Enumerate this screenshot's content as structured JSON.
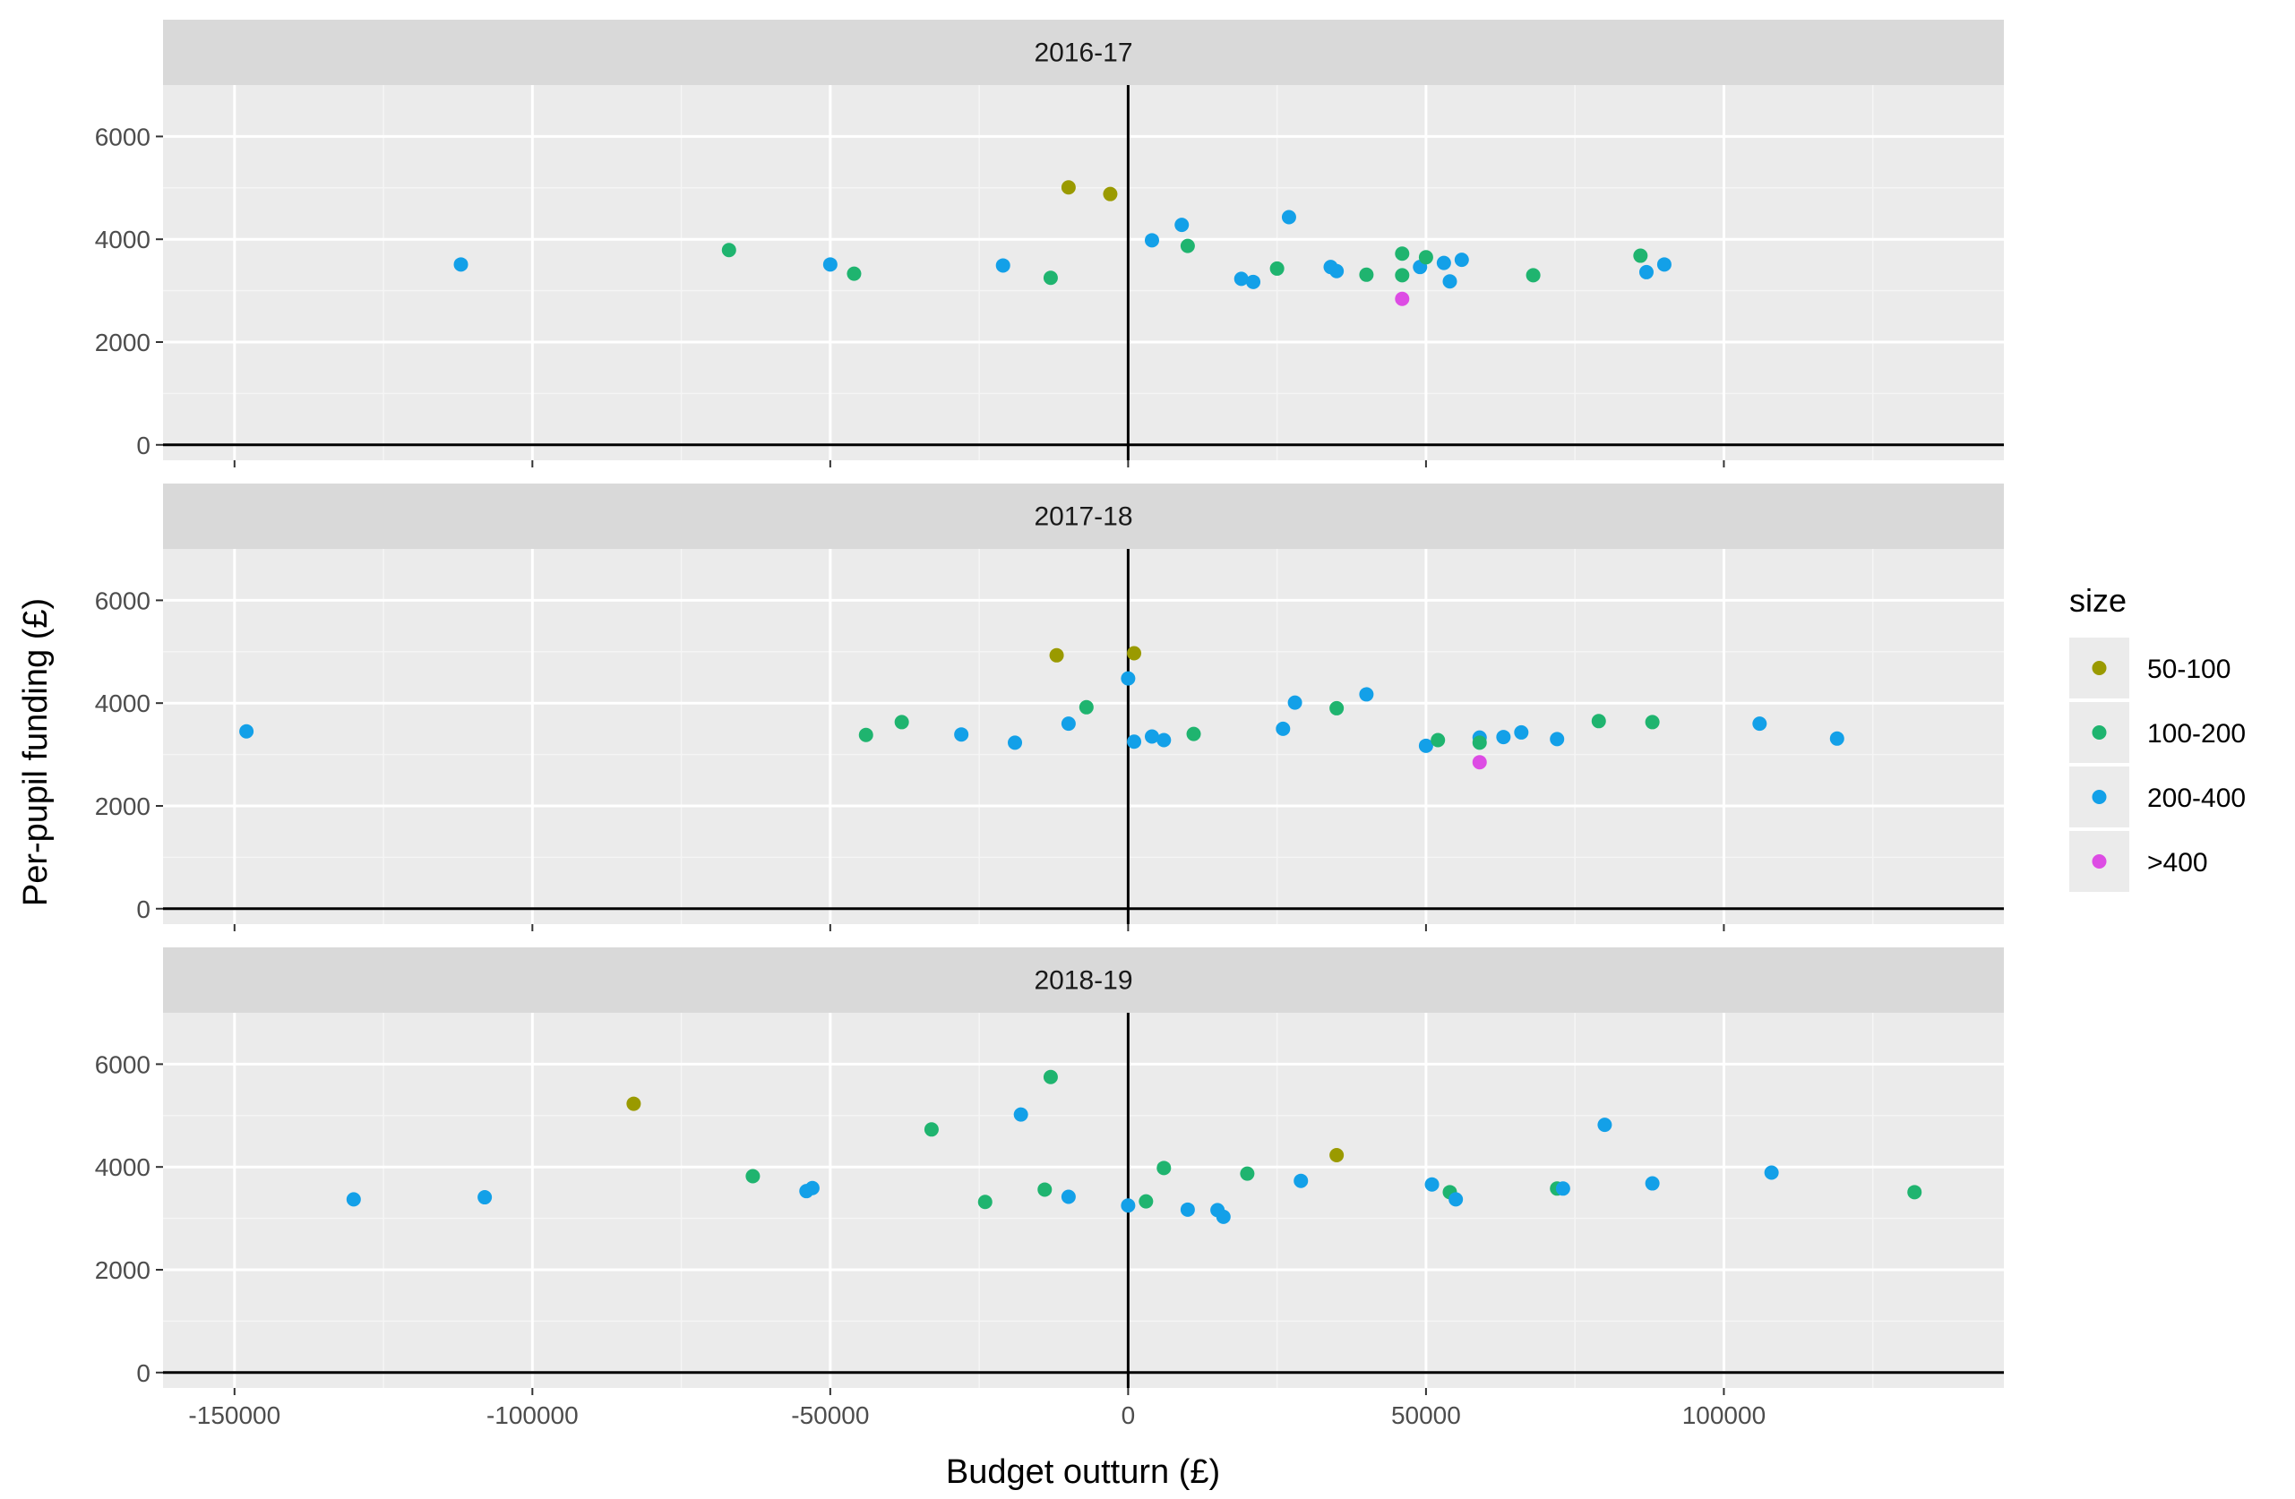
{
  "chart_data": {
    "type": "scatter",
    "xlabel": "Budget outturn (£)",
    "ylabel": "Per-pupil funding (£)",
    "xlim": [
      -162000,
      147000
    ],
    "ylim": [
      -300,
      7000
    ],
    "x_ticks": [
      -150000,
      -100000,
      -50000,
      0,
      50000,
      100000
    ],
    "y_ticks": [
      0,
      2000,
      4000,
      6000
    ],
    "x_tick_labels": [
      "-150000",
      "-100000",
      "-50000",
      "0",
      "50000",
      "100000"
    ],
    "y_tick_labels": [
      "0",
      "2000",
      "4000",
      "6000"
    ],
    "legend": {
      "title": "size",
      "placement": "right",
      "entries": [
        {
          "label": "50-100",
          "color": "#9a9a00"
        },
        {
          "label": "100-200",
          "color": "#1fb46f"
        },
        {
          "label": "200-400",
          "color": "#13a0e8"
        },
        {
          "label": ">400",
          "color": "#dd4ce4"
        }
      ]
    },
    "panels": [
      {
        "label": "2016-17",
        "points": [
          {
            "x": -112000,
            "y": 3510,
            "s": 2
          },
          {
            "x": -67000,
            "y": 3790,
            "s": 1
          },
          {
            "x": -50000,
            "y": 3510,
            "s": 2
          },
          {
            "x": -46000,
            "y": 3330,
            "s": 1
          },
          {
            "x": -21000,
            "y": 3490,
            "s": 2
          },
          {
            "x": -13000,
            "y": 3250,
            "s": 1
          },
          {
            "x": -10000,
            "y": 5010,
            "s": 0
          },
          {
            "x": -3000,
            "y": 4880,
            "s": 0
          },
          {
            "x": 4000,
            "y": 3980,
            "s": 2
          },
          {
            "x": 9000,
            "y": 4280,
            "s": 2
          },
          {
            "x": 10000,
            "y": 3870,
            "s": 1
          },
          {
            "x": 19000,
            "y": 3230,
            "s": 2
          },
          {
            "x": 21000,
            "y": 3170,
            "s": 2
          },
          {
            "x": 25000,
            "y": 3430,
            "s": 1
          },
          {
            "x": 27000,
            "y": 4430,
            "s": 2
          },
          {
            "x": 34000,
            "y": 3460,
            "s": 2
          },
          {
            "x": 35000,
            "y": 3380,
            "s": 2
          },
          {
            "x": 40000,
            "y": 3310,
            "s": 1
          },
          {
            "x": 46000,
            "y": 3720,
            "s": 1
          },
          {
            "x": 46000,
            "y": 3300,
            "s": 1
          },
          {
            "x": 46000,
            "y": 2840,
            "s": 3
          },
          {
            "x": 49000,
            "y": 3460,
            "s": 2
          },
          {
            "x": 50000,
            "y": 3650,
            "s": 1
          },
          {
            "x": 53000,
            "y": 3540,
            "s": 2
          },
          {
            "x": 54000,
            "y": 3180,
            "s": 2
          },
          {
            "x": 56000,
            "y": 3600,
            "s": 2
          },
          {
            "x": 68000,
            "y": 3300,
            "s": 1
          },
          {
            "x": 86000,
            "y": 3680,
            "s": 1
          },
          {
            "x": 87000,
            "y": 3360,
            "s": 2
          },
          {
            "x": 90000,
            "y": 3510,
            "s": 2
          }
        ]
      },
      {
        "label": "2017-18",
        "points": [
          {
            "x": -148000,
            "y": 3450,
            "s": 2
          },
          {
            "x": -44000,
            "y": 3380,
            "s": 1
          },
          {
            "x": -38000,
            "y": 3630,
            "s": 1
          },
          {
            "x": -28000,
            "y": 3390,
            "s": 2
          },
          {
            "x": -19000,
            "y": 3230,
            "s": 2
          },
          {
            "x": -12000,
            "y": 4930,
            "s": 0
          },
          {
            "x": -10000,
            "y": 3600,
            "s": 2
          },
          {
            "x": -7000,
            "y": 3920,
            "s": 1
          },
          {
            "x": 0,
            "y": 4480,
            "s": 2
          },
          {
            "x": 1000,
            "y": 4970,
            "s": 0
          },
          {
            "x": 1000,
            "y": 3250,
            "s": 2
          },
          {
            "x": 4000,
            "y": 3350,
            "s": 2
          },
          {
            "x": 6000,
            "y": 3280,
            "s": 2
          },
          {
            "x": 11000,
            "y": 3400,
            "s": 1
          },
          {
            "x": 26000,
            "y": 3500,
            "s": 2
          },
          {
            "x": 28000,
            "y": 4010,
            "s": 2
          },
          {
            "x": 35000,
            "y": 3900,
            "s": 1
          },
          {
            "x": 40000,
            "y": 4170,
            "s": 2
          },
          {
            "x": 50000,
            "y": 3170,
            "s": 2
          },
          {
            "x": 52000,
            "y": 3280,
            "s": 1
          },
          {
            "x": 59000,
            "y": 3330,
            "s": 2
          },
          {
            "x": 59000,
            "y": 3230,
            "s": 1
          },
          {
            "x": 59000,
            "y": 2850,
            "s": 3
          },
          {
            "x": 63000,
            "y": 3340,
            "s": 2
          },
          {
            "x": 66000,
            "y": 3430,
            "s": 2
          },
          {
            "x": 72000,
            "y": 3300,
            "s": 2
          },
          {
            "x": 79000,
            "y": 3650,
            "s": 1
          },
          {
            "x": 88000,
            "y": 3630,
            "s": 1
          },
          {
            "x": 106000,
            "y": 3600,
            "s": 2
          },
          {
            "x": 119000,
            "y": 3310,
            "s": 2
          }
        ]
      },
      {
        "label": "2018-19",
        "points": [
          {
            "x": -130000,
            "y": 3370,
            "s": 2
          },
          {
            "x": -108000,
            "y": 3410,
            "s": 2
          },
          {
            "x": -83000,
            "y": 5230,
            "s": 0
          },
          {
            "x": -63000,
            "y": 3820,
            "s": 1
          },
          {
            "x": -54000,
            "y": 3530,
            "s": 2
          },
          {
            "x": -53000,
            "y": 3590,
            "s": 2
          },
          {
            "x": -33000,
            "y": 4730,
            "s": 1
          },
          {
            "x": -24000,
            "y": 3320,
            "s": 1
          },
          {
            "x": -18000,
            "y": 5020,
            "s": 2
          },
          {
            "x": -14000,
            "y": 3560,
            "s": 1
          },
          {
            "x": -13000,
            "y": 5750,
            "s": 1
          },
          {
            "x": -10000,
            "y": 3420,
            "s": 2
          },
          {
            "x": 0,
            "y": 3250,
            "s": 2
          },
          {
            "x": 3000,
            "y": 3330,
            "s": 1
          },
          {
            "x": 6000,
            "y": 3980,
            "s": 1
          },
          {
            "x": 10000,
            "y": 3170,
            "s": 2
          },
          {
            "x": 15000,
            "y": 3160,
            "s": 2
          },
          {
            "x": 16000,
            "y": 3030,
            "s": 2
          },
          {
            "x": 20000,
            "y": 3870,
            "s": 1
          },
          {
            "x": 29000,
            "y": 3730,
            "s": 2
          },
          {
            "x": 35000,
            "y": 4230,
            "s": 0
          },
          {
            "x": 51000,
            "y": 3660,
            "s": 2
          },
          {
            "x": 54000,
            "y": 3510,
            "s": 1
          },
          {
            "x": 55000,
            "y": 3370,
            "s": 2
          },
          {
            "x": 72000,
            "y": 3580,
            "s": 1
          },
          {
            "x": 73000,
            "y": 3580,
            "s": 2
          },
          {
            "x": 80000,
            "y": 4820,
            "s": 2
          },
          {
            "x": 88000,
            "y": 3680,
            "s": 2
          },
          {
            "x": 108000,
            "y": 3890,
            "s": 2
          },
          {
            "x": 132000,
            "y": 3510,
            "s": 1
          }
        ]
      }
    ]
  }
}
